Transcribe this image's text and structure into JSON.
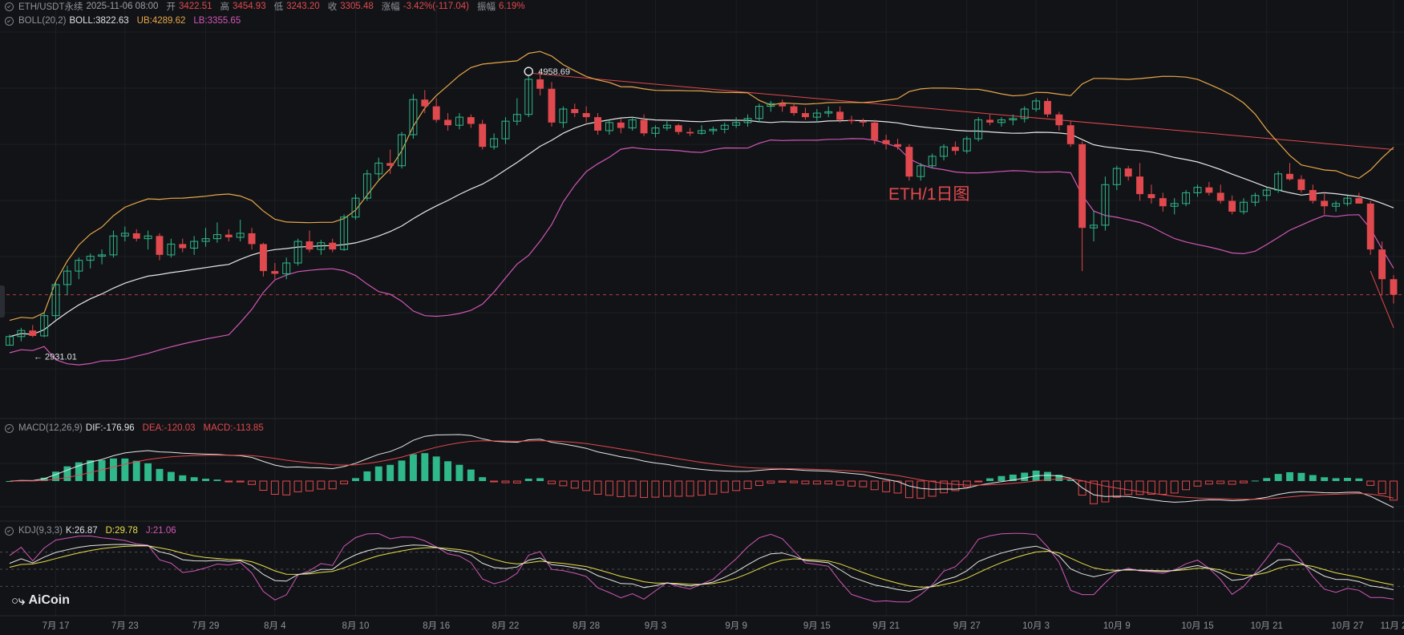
{
  "header": {
    "symbol": "ETH/USDT永续",
    "datetime": "2025-11-06 08:00",
    "open_label": "开",
    "open": "3422.51",
    "high_label": "高",
    "high": "3454.93",
    "low_label": "低",
    "low": "3243.20",
    "close_label": "收",
    "close": "3305.48",
    "change_label": "涨幅",
    "change": "-3.42%(-117.04)",
    "amp_label": "振幅",
    "amp": "6.19%"
  },
  "boll": {
    "name": "BOLL(20,2)",
    "mid_label": "BOLL:",
    "mid": "3822.63",
    "ub_label": "UB:",
    "ub": "4289.62",
    "lb_label": "LB:",
    "lb": "3355.65"
  },
  "macd": {
    "name": "MACD(12,26,9)",
    "dif_label": "DIF:",
    "dif": "-176.96",
    "dea_label": "DEA:",
    "dea": "-120.03",
    "macd_label": "MACD:",
    "macd": "-113.85"
  },
  "kdj": {
    "name": "KDJ(9,3,3)",
    "k_label": "K:",
    "k": "26.87",
    "d_label": "D:",
    "d": "29.78",
    "j_label": "J:",
    "j": "21.06"
  },
  "annotation": "ETH/1日图",
  "marker_high": "4958.69",
  "marker_low": "2931.01",
  "logo": "AiCoin",
  "colors": {
    "up": "#2fb88a",
    "down": "#e0494e",
    "mid": "#e6e6e6",
    "ub": "#e7a74b",
    "lb": "#d057b8",
    "dea": "#e0494e",
    "k": "#e6e6e6",
    "d": "#e8df4a",
    "j": "#d057b8",
    "trend": "#e0494e",
    "bg": "#121316"
  },
  "chart_data": {
    "type": "candlestick",
    "x_ticks": [
      "7月 17",
      "7月 23",
      "7月 29",
      "8月 4",
      "8月 10",
      "8月 16",
      "8月 22",
      "8月 28",
      "9月 3",
      "9月 9",
      "9月 15",
      "9月 21",
      "9月 27",
      "10月 3",
      "10月 9",
      "10月 15",
      "10月 21",
      "10月 27",
      "11月 2"
    ],
    "y_range": [
      2400,
      5250
    ],
    "annotations": [
      {
        "value": "4958.69",
        "type": "high"
      },
      {
        "value": "2931.01",
        "type": "low"
      }
    ],
    "candles_ohlc": [
      [
        2931,
        3010,
        2931,
        2995
      ],
      [
        2995,
        3060,
        2960,
        3040
      ],
      [
        3040,
        3080,
        2990,
        3000
      ],
      [
        3000,
        3170,
        2990,
        3150
      ],
      [
        3150,
        3400,
        3120,
        3380
      ],
      [
        3380,
        3520,
        3300,
        3480
      ],
      [
        3480,
        3580,
        3420,
        3560
      ],
      [
        3560,
        3610,
        3500,
        3590
      ],
      [
        3590,
        3640,
        3530,
        3600
      ],
      [
        3600,
        3780,
        3580,
        3740
      ],
      [
        3740,
        3810,
        3700,
        3760
      ],
      [
        3760,
        3790,
        3700,
        3720
      ],
      [
        3720,
        3780,
        3640,
        3740
      ],
      [
        3740,
        3760,
        3560,
        3600
      ],
      [
        3600,
        3720,
        3580,
        3680
      ],
      [
        3680,
        3720,
        3620,
        3650
      ],
      [
        3650,
        3740,
        3600,
        3700
      ],
      [
        3700,
        3800,
        3660,
        3720
      ],
      [
        3720,
        3840,
        3690,
        3750
      ],
      [
        3750,
        3790,
        3700,
        3730
      ],
      [
        3730,
        3860,
        3700,
        3760
      ],
      [
        3760,
        3800,
        3640,
        3680
      ],
      [
        3680,
        3690,
        3440,
        3480
      ],
      [
        3480,
        3540,
        3420,
        3460
      ],
      [
        3460,
        3580,
        3420,
        3540
      ],
      [
        3540,
        3720,
        3520,
        3700
      ],
      [
        3700,
        3780,
        3620,
        3640
      ],
      [
        3640,
        3710,
        3600,
        3690
      ],
      [
        3690,
        3720,
        3620,
        3640
      ],
      [
        3640,
        3900,
        3630,
        3880
      ],
      [
        3880,
        4050,
        3860,
        4020
      ],
      [
        4020,
        4230,
        4000,
        4200
      ],
      [
        4200,
        4320,
        4150,
        4280
      ],
      [
        4280,
        4380,
        4200,
        4260
      ],
      [
        4260,
        4510,
        4240,
        4490
      ],
      [
        4490,
        4790,
        4460,
        4750
      ],
      [
        4750,
        4820,
        4650,
        4700
      ],
      [
        4700,
        4760,
        4580,
        4600
      ],
      [
        4600,
        4650,
        4520,
        4560
      ],
      [
        4560,
        4650,
        4530,
        4620
      ],
      [
        4620,
        4640,
        4540,
        4570
      ],
      [
        4570,
        4600,
        4380,
        4400
      ],
      [
        4400,
        4500,
        4380,
        4460
      ],
      [
        4460,
        4620,
        4420,
        4590
      ],
      [
        4590,
        4760,
        4560,
        4640
      ],
      [
        4640,
        4960,
        4620,
        4900
      ],
      [
        4900,
        4958,
        4780,
        4830
      ],
      [
        4830,
        4880,
        4550,
        4580
      ],
      [
        4580,
        4700,
        4540,
        4680
      ],
      [
        4680,
        4720,
        4620,
        4650
      ],
      [
        4650,
        4700,
        4580,
        4620
      ],
      [
        4620,
        4650,
        4490,
        4520
      ],
      [
        4520,
        4600,
        4490,
        4580
      ],
      [
        4580,
        4610,
        4500,
        4540
      ],
      [
        4540,
        4620,
        4520,
        4600
      ],
      [
        4600,
        4640,
        4480,
        4500
      ],
      [
        4500,
        4560,
        4470,
        4540
      ],
      [
        4540,
        4590,
        4520,
        4560
      ],
      [
        4560,
        4570,
        4490,
        4510
      ],
      [
        4510,
        4540,
        4480,
        4500
      ],
      [
        4500,
        4560,
        4490,
        4520
      ],
      [
        4520,
        4550,
        4490,
        4530
      ],
      [
        4530,
        4580,
        4500,
        4560
      ],
      [
        4560,
        4620,
        4540,
        4580
      ],
      [
        4580,
        4640,
        4550,
        4610
      ],
      [
        4610,
        4720,
        4580,
        4700
      ],
      [
        4700,
        4740,
        4660,
        4720
      ],
      [
        4720,
        4750,
        4660,
        4700
      ],
      [
        4700,
        4720,
        4630,
        4650
      ],
      [
        4650,
        4690,
        4600,
        4620
      ],
      [
        4620,
        4680,
        4580,
        4650
      ],
      [
        4650,
        4700,
        4620,
        4660
      ],
      [
        4660,
        4700,
        4580,
        4600
      ],
      [
        4600,
        4630,
        4570,
        4590
      ],
      [
        4590,
        4610,
        4550,
        4580
      ],
      [
        4580,
        4600,
        4420,
        4450
      ],
      [
        4450,
        4490,
        4380,
        4420
      ],
      [
        4420,
        4460,
        4380,
        4400
      ],
      [
        4400,
        4420,
        4150,
        4180
      ],
      [
        4180,
        4280,
        4150,
        4260
      ],
      [
        4260,
        4350,
        4240,
        4330
      ],
      [
        4330,
        4420,
        4300,
        4400
      ],
      [
        4400,
        4440,
        4340,
        4370
      ],
      [
        4370,
        4480,
        4350,
        4460
      ],
      [
        4460,
        4620,
        4440,
        4600
      ],
      [
        4600,
        4640,
        4560,
        4580
      ],
      [
        4580,
        4620,
        4550,
        4600
      ],
      [
        4600,
        4640,
        4560,
        4610
      ],
      [
        4610,
        4700,
        4580,
        4680
      ],
      [
        4680,
        4760,
        4660,
        4740
      ],
      [
        4740,
        4760,
        4620,
        4640
      ],
      [
        4640,
        4660,
        4520,
        4560
      ],
      [
        4560,
        4590,
        4400,
        4420
      ],
      [
        4420,
        4440,
        3480,
        3800
      ],
      [
        3800,
        3930,
        3700,
        3820
      ],
      [
        3820,
        4180,
        3780,
        4120
      ],
      [
        4120,
        4260,
        4080,
        4240
      ],
      [
        4240,
        4260,
        4150,
        4180
      ],
      [
        4180,
        4280,
        4000,
        4050
      ],
      [
        4050,
        4120,
        3980,
        4020
      ],
      [
        4020,
        4060,
        3920,
        3960
      ],
      [
        3960,
        4020,
        3900,
        3980
      ],
      [
        3980,
        4080,
        3960,
        4060
      ],
      [
        4060,
        4120,
        4030,
        4100
      ],
      [
        4100,
        4140,
        4040,
        4060
      ],
      [
        4060,
        4120,
        3980,
        4000
      ],
      [
        4000,
        4040,
        3900,
        3920
      ],
      [
        3920,
        4020,
        3900,
        3990
      ],
      [
        3990,
        4060,
        3960,
        4040
      ],
      [
        4040,
        4100,
        4000,
        4080
      ],
      [
        4080,
        4220,
        4060,
        4200
      ],
      [
        4200,
        4280,
        4150,
        4160
      ],
      [
        4160,
        4190,
        4060,
        4080
      ],
      [
        4080,
        4120,
        3980,
        4000
      ],
      [
        4000,
        4060,
        3900,
        3960
      ],
      [
        3960,
        4000,
        3920,
        3980
      ],
      [
        3980,
        4040,
        3960,
        4020
      ],
      [
        4020,
        4060,
        3980,
        3980
      ],
      [
        3980,
        4000,
        3600,
        3640
      ],
      [
        3640,
        3700,
        3300,
        3420
      ],
      [
        3420,
        3450,
        3240,
        3305
      ]
    ],
    "bollinger": {
      "period": 20,
      "stddev": 2
    },
    "macd_params": [
      12,
      26,
      9
    ],
    "kdj_params": [
      9,
      3,
      3
    ],
    "grid": true
  }
}
